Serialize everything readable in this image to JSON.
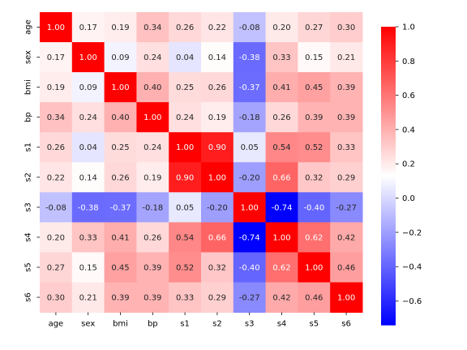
{
  "chart_data": {
    "type": "heatmap",
    "rows": [
      "age",
      "sex",
      "bmi",
      "bp",
      "s1",
      "s2",
      "s3",
      "s4",
      "s5",
      "s6"
    ],
    "cols": [
      "age",
      "sex",
      "bmi",
      "bp",
      "s1",
      "s2",
      "s3",
      "s4",
      "s5",
      "s6"
    ],
    "values": [
      [
        1.0,
        0.17,
        0.19,
        0.34,
        0.26,
        0.22,
        -0.08,
        0.2,
        0.27,
        0.3
      ],
      [
        0.17,
        1.0,
        0.09,
        0.24,
        0.04,
        0.14,
        -0.38,
        0.33,
        0.15,
        0.21
      ],
      [
        0.19,
        0.09,
        1.0,
        0.4,
        0.25,
        0.26,
        -0.37,
        0.41,
        0.45,
        0.39
      ],
      [
        0.34,
        0.24,
        0.4,
        1.0,
        0.24,
        0.19,
        -0.18,
        0.26,
        0.39,
        0.39
      ],
      [
        0.26,
        0.04,
        0.25,
        0.24,
        1.0,
        0.9,
        0.05,
        0.54,
        0.52,
        0.33
      ],
      [
        0.22,
        0.14,
        0.26,
        0.19,
        0.9,
        1.0,
        -0.2,
        0.66,
        0.32,
        0.29
      ],
      [
        -0.08,
        -0.38,
        -0.37,
        -0.18,
        0.05,
        -0.2,
        1.0,
        -0.74,
        -0.4,
        -0.27
      ],
      [
        0.2,
        0.33,
        0.41,
        0.26,
        0.54,
        0.66,
        -0.74,
        1.0,
        0.62,
        0.42
      ],
      [
        0.27,
        0.15,
        0.45,
        0.39,
        0.52,
        0.32,
        -0.4,
        0.62,
        1.0,
        0.46
      ],
      [
        0.3,
        0.21,
        0.39,
        0.39,
        0.33,
        0.29,
        -0.27,
        0.42,
        0.46,
        1.0
      ]
    ],
    "value_format": "0.00",
    "colormap": "bwr",
    "vmin": -0.74,
    "vmax": 1.0,
    "colorbar": {
      "ticks": [
        -0.6,
        -0.4,
        -0.2,
        0.0,
        0.2,
        0.4,
        0.6,
        0.8,
        1.0
      ],
      "tick_labels": [
        "−0.6",
        "−0.4",
        "−0.2",
        "0.0",
        "0.2",
        "0.4",
        "0.6",
        "0.8",
        "1.0"
      ],
      "position": "right"
    },
    "title": "",
    "xlabel": "",
    "ylabel": "",
    "grid": false
  }
}
